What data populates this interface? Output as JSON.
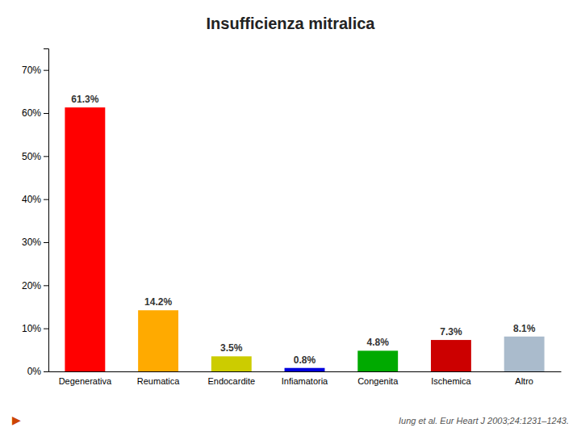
{
  "chart_data": {
    "type": "bar",
    "title": "Insufficienza mitralica",
    "categories": [
      "Degenerativa",
      "Reumatica",
      "Endocardite",
      "Infiamatoria",
      "Congenita",
      "Ischemica",
      "Altro"
    ],
    "values": [
      61.3,
      14.2,
      3.5,
      0.8,
      4.8,
      7.3,
      8.1
    ],
    "value_labels": [
      "61.3%",
      "14.2%",
      "3.5%",
      "0.8%",
      "4.8%",
      "7.3%",
      "8.1%"
    ],
    "colors": [
      "#ff0000",
      "#ffaa00",
      "#cccc00",
      "#0000dd",
      "#00aa00",
      "#cc0000",
      "#aabbcc"
    ],
    "ylim": [
      0,
      75
    ],
    "yticks": [
      {
        "value": 0,
        "label": "0%"
      },
      {
        "value": 10,
        "label": "10%"
      },
      {
        "value": 20,
        "label": "20%"
      },
      {
        "value": 30,
        "label": "30%"
      },
      {
        "value": 40,
        "label": "40%"
      },
      {
        "value": 50,
        "label": "50%"
      },
      {
        "value": 60,
        "label": "60%"
      },
      {
        "value": 70,
        "label": "70%"
      }
    ],
    "grid": false,
    "data_labels": true,
    "annotations": [
      "Iung et al. Eur Heart J 2003;24:1231–1243.",
      "▶"
    ]
  }
}
